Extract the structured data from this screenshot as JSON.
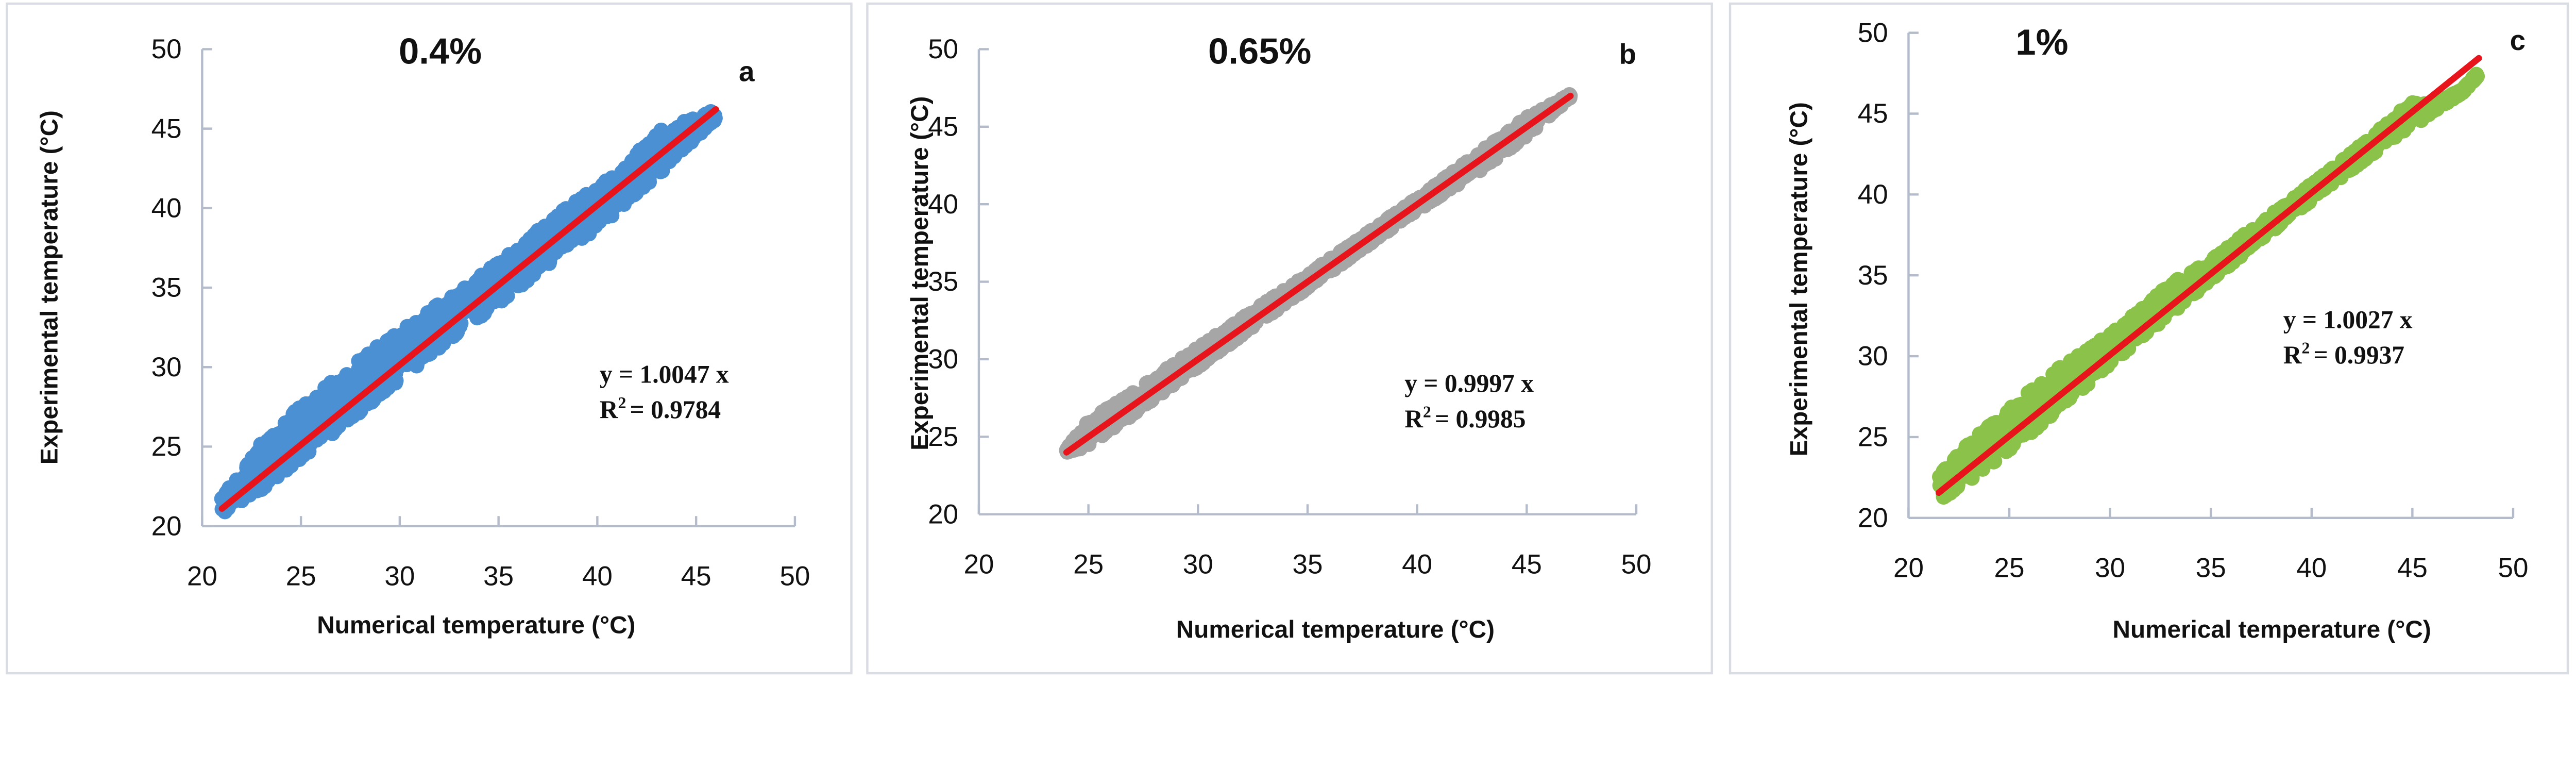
{
  "chart_data": [
    {
      "type": "scatter",
      "title": "0.4%",
      "panel_label": "a",
      "xlabel": "Numerical temperature (°C)",
      "ylabel": "Experimental temperature (°C)",
      "xlim": [
        20,
        50
      ],
      "ylim": [
        20,
        50
      ],
      "xticks": [
        "20",
        "25",
        "30",
        "35",
        "40",
        "45",
        "50"
      ],
      "yticks": [
        "20",
        "25",
        "30",
        "35",
        "40",
        "45",
        "50"
      ],
      "grid": false,
      "marker_color": "#4a90d2",
      "fit_color": "#e8141b",
      "equation": "y = 1.0047 x",
      "r2_prefix": "R",
      "r2_sup": "2",
      "r2_value": "= 0.9784",
      "fit": {
        "slope": 1.0047,
        "x_range": [
          21,
          46
        ]
      },
      "envelope": [
        [
          21,
          20.8,
          21.8
        ],
        [
          23,
          22.3,
          25.2
        ],
        [
          25,
          24.2,
          27.6
        ],
        [
          27,
          26.2,
          29.6
        ],
        [
          29,
          28.2,
          31.4
        ],
        [
          31,
          30.2,
          33.2
        ],
        [
          33,
          32.2,
          34.8
        ],
        [
          35,
          34.0,
          36.6
        ],
        [
          37,
          36.0,
          38.6
        ],
        [
          39,
          37.8,
          40.6
        ],
        [
          41,
          39.8,
          42.2
        ],
        [
          43,
          42.0,
          44.8
        ],
        [
          46,
          45.6,
          46.2
        ]
      ]
    },
    {
      "type": "scatter",
      "title": "0.65%",
      "panel_label": "b",
      "xlabel": "Numerical temperature (°C)",
      "ylabel": "Experimental temperature (°C)",
      "xlim": [
        20,
        50
      ],
      "ylim": [
        20,
        50
      ],
      "xticks": [
        "20",
        "25",
        "30",
        "35",
        "40",
        "45",
        "50"
      ],
      "yticks": [
        "20",
        "25",
        "30",
        "35",
        "40",
        "45",
        "50"
      ],
      "grid": false,
      "marker_color": "#a6a6a6",
      "fit_color": "#e8141b",
      "equation": "y = 0.9997 x",
      "r2_prefix": "R",
      "r2_sup": "2",
      "r2_value": "= 0.9985",
      "fit": {
        "slope": 0.9997,
        "x_range": [
          24,
          47
        ]
      },
      "envelope": [
        [
          24,
          23.8,
          24.2
        ],
        [
          25,
          24.4,
          26.0
        ],
        [
          27,
          26.4,
          27.9
        ],
        [
          29,
          28.5,
          29.8
        ],
        [
          31,
          30.5,
          31.7
        ],
        [
          33,
          32.6,
          33.6
        ],
        [
          35,
          34.6,
          35.5
        ],
        [
          37,
          36.6,
          37.4
        ],
        [
          39,
          38.6,
          39.4
        ],
        [
          41,
          40.5,
          41.4
        ],
        [
          43,
          42.3,
          43.5
        ],
        [
          45,
          44.4,
          45.6
        ],
        [
          47,
          46.9,
          47.1
        ]
      ]
    },
    {
      "type": "scatter",
      "title": "1%",
      "panel_label": "c",
      "xlabel": "Numerical temperature (°C)",
      "ylabel": "Experimental temperature (°C)",
      "xlim": [
        20,
        50
      ],
      "ylim": [
        20,
        50
      ],
      "xticks": [
        "20",
        "25",
        "30",
        "35",
        "40",
        "45",
        "50"
      ],
      "yticks": [
        "20",
        "25",
        "30",
        "35",
        "40",
        "45",
        "50"
      ],
      "grid": false,
      "marker_color": "#8bc34a",
      "fit_color": "#e8141b",
      "equation": "y = 1.0027 x",
      "r2_prefix": "R",
      "r2_sup": "2",
      "r2_value": "= 0.9937",
      "fit": {
        "slope": 1.0027,
        "x_range": [
          21.5,
          48.3
        ]
      },
      "envelope": [
        [
          21.5,
          21.0,
          22.6
        ],
        [
          23,
          22.3,
          24.6
        ],
        [
          25,
          24.2,
          26.8
        ],
        [
          27,
          26.2,
          28.9
        ],
        [
          29,
          28.4,
          30.5
        ],
        [
          31,
          30.5,
          32.4
        ],
        [
          33,
          32.6,
          34.5
        ],
        [
          35,
          34.7,
          35.9
        ],
        [
          37,
          36.7,
          37.9
        ],
        [
          39,
          38.7,
          39.7
        ],
        [
          41,
          40.6,
          41.6
        ],
        [
          43,
          42.5,
          43.6
        ],
        [
          45,
          44.2,
          45.8
        ],
        [
          46,
          45.1,
          45.6
        ],
        [
          47.5,
          46.3,
          46.5
        ],
        [
          48.3,
          47.4,
          47.6
        ]
      ]
    }
  ]
}
